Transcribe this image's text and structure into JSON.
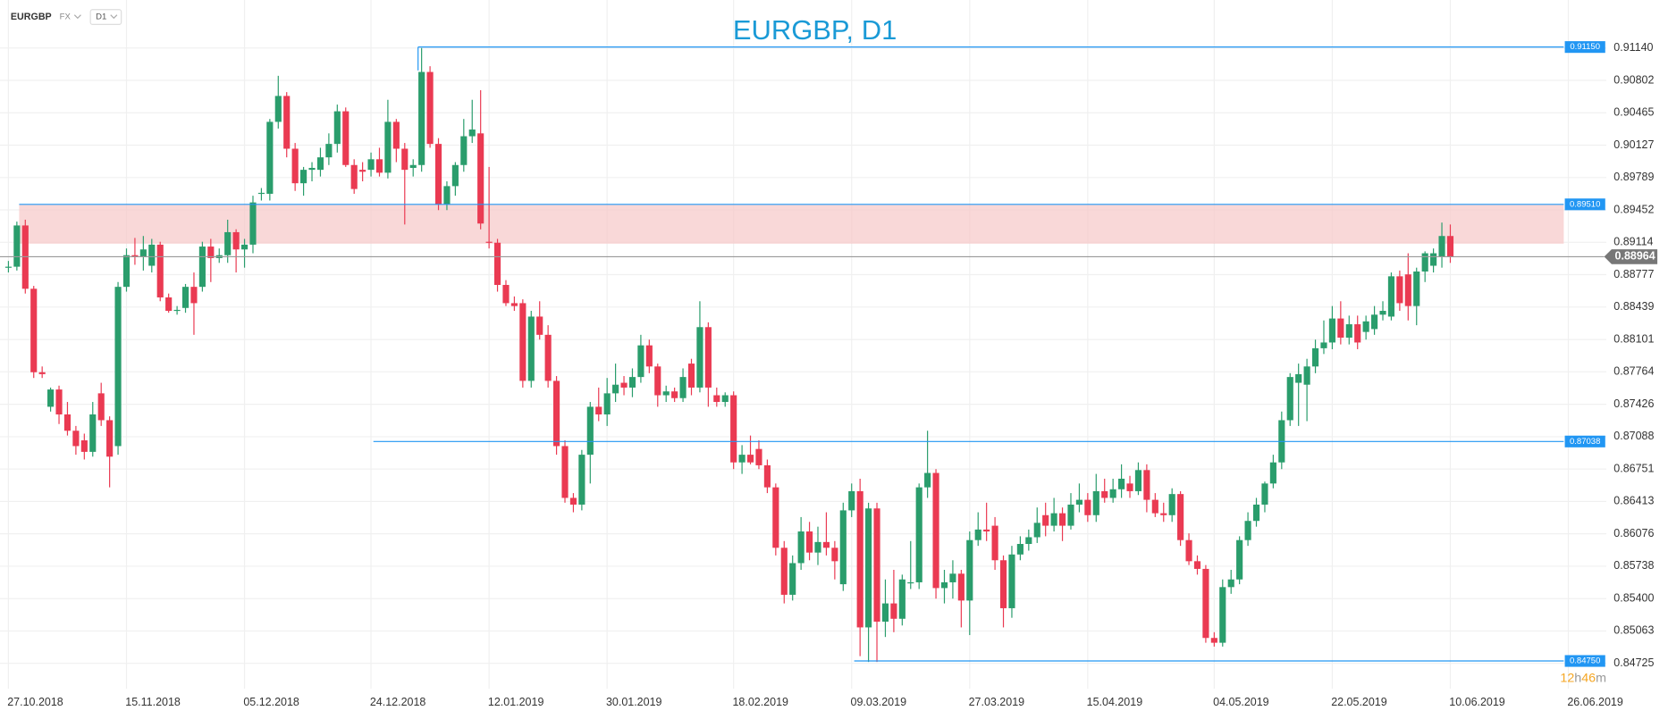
{
  "chart_data": {
    "type": "candlestick",
    "symbol": "EURGBP",
    "market": "FX",
    "timeframe": "D1",
    "title": "EURGBP, D1",
    "up_color": "#2a9d6c",
    "down_color": "#ea3a52",
    "level_color": "#2196f3",
    "zone_color": "#f7c7c7",
    "grid": true,
    "xlim": [
      -1,
      189.5
    ],
    "ylim": [
      0.8446,
      0.9164
    ],
    "yticks": [
      {
        "value": 0.9114,
        "label": "0.91140"
      },
      0.90802,
      0.90465,
      0.90127,
      0.89789,
      0.89452,
      0.89114,
      0.88777,
      0.88439,
      0.88101,
      0.87764,
      0.87426,
      0.87088,
      0.86751,
      0.86413,
      0.86076,
      0.85738,
      {
        "value": 0.854,
        "label": "0.85400"
      },
      0.85063,
      0.84725
    ],
    "xticks": [
      {
        "value": 0,
        "label": "27.10.2018"
      },
      {
        "value": 14,
        "label": "15.11.2018"
      },
      {
        "value": 28,
        "label": "05.12.2018"
      },
      {
        "value": 43,
        "label": "24.12.2018"
      },
      {
        "value": 57,
        "label": "12.01.2019"
      },
      {
        "value": 71,
        "label": "30.01.2019"
      },
      {
        "value": 86,
        "label": "18.02.2019"
      },
      {
        "value": 100,
        "label": "09.03.2019"
      },
      {
        "value": 114,
        "label": "27.03.2019"
      },
      {
        "value": 128,
        "label": "15.04.2019"
      },
      {
        "value": 143,
        "label": "04.05.2019"
      },
      {
        "value": 157,
        "label": "22.05.2019"
      },
      {
        "value": 171,
        "label": "10.06.2019"
      },
      {
        "value": 185,
        "label": "26.06.2019"
      }
    ],
    "levels": [
      {
        "value": 0.9115,
        "label": "0.91150"
      },
      {
        "value": 0.8951,
        "label": "0.89510"
      },
      {
        "value": 0.87038,
        "label": "0.87038"
      },
      {
        "value": 0.8475,
        "label": "0.84750"
      }
    ],
    "zone": [
      0.891,
      0.8951
    ],
    "last_price": 0.88964,
    "countdown": [
      "12",
      "h",
      "46",
      "m"
    ],
    "candles": [
      [
        0.8885,
        0.8892,
        0.888,
        0.8886
      ],
      [
        0.8886,
        0.8933,
        0.8882,
        0.8929
      ],
      [
        0.8929,
        0.8935,
        0.8858,
        0.8863
      ],
      [
        0.8863,
        0.8866,
        0.877,
        0.8776
      ],
      [
        0.8776,
        0.8782,
        0.877,
        0.8774
      ],
      [
        0.874,
        0.876,
        0.8735,
        0.8758
      ],
      [
        0.8758,
        0.8762,
        0.8722,
        0.8732
      ],
      [
        0.8732,
        0.8745,
        0.871,
        0.8715
      ],
      [
        0.8715,
        0.872,
        0.869,
        0.8699
      ],
      [
        0.8705,
        0.8712,
        0.8685,
        0.8693
      ],
      [
        0.8693,
        0.8745,
        0.8688,
        0.8732
      ],
      [
        0.8754,
        0.8765,
        0.872,
        0.8726
      ],
      [
        0.8726,
        0.873,
        0.8656,
        0.8688
      ],
      [
        0.8699,
        0.887,
        0.869,
        0.8865
      ],
      [
        0.8865,
        0.8905,
        0.886,
        0.8898
      ],
      [
        0.8898,
        0.8916,
        0.8888,
        0.8896
      ],
      [
        0.8896,
        0.8918,
        0.8882,
        0.8904
      ],
      [
        0.8887,
        0.8915,
        0.888,
        0.8909
      ],
      [
        0.8909,
        0.8912,
        0.885,
        0.8854
      ],
      [
        0.8854,
        0.8858,
        0.8838,
        0.884
      ],
      [
        0.884,
        0.8845,
        0.8836,
        0.8841
      ],
      [
        0.8843,
        0.8868,
        0.8838,
        0.8865
      ],
      [
        0.8865,
        0.888,
        0.8815,
        0.8848
      ],
      [
        0.8865,
        0.8912,
        0.886,
        0.8907
      ],
      [
        0.8907,
        0.8915,
        0.887,
        0.8895
      ],
      [
        0.8895,
        0.8905,
        0.889,
        0.8898
      ],
      [
        0.8898,
        0.8935,
        0.889,
        0.8922
      ],
      [
        0.8922,
        0.8925,
        0.888,
        0.8904
      ],
      [
        0.8904,
        0.8915,
        0.8885,
        0.8909
      ],
      [
        0.8909,
        0.896,
        0.89,
        0.8953
      ],
      [
        0.8962,
        0.8968,
        0.8955,
        0.8963
      ],
      [
        0.8962,
        0.904,
        0.8955,
        0.9037
      ],
      [
        0.9037,
        0.9085,
        0.903,
        0.9064
      ],
      [
        0.9064,
        0.9068,
        0.9,
        0.9009
      ],
      [
        0.9009,
        0.9015,
        0.8965,
        0.8973
      ],
      [
        0.8973,
        0.899,
        0.896,
        0.8987
      ],
      [
        0.8987,
        0.8995,
        0.8975,
        0.8989
      ],
      [
        0.8987,
        0.901,
        0.898,
        0.9
      ],
      [
        0.9,
        0.9025,
        0.8992,
        0.9014
      ],
      [
        0.9014,
        0.9055,
        0.9005,
        0.9048
      ],
      [
        0.9048,
        0.9052,
        0.899,
        0.8992
      ],
      [
        0.8992,
        0.8998,
        0.8962,
        0.8967
      ],
      [
        0.8987,
        0.8995,
        0.8975,
        0.8985
      ],
      [
        0.8987,
        0.9005,
        0.898,
        0.8998
      ],
      [
        0.8998,
        0.901,
        0.898,
        0.8984
      ],
      [
        0.8984,
        0.906,
        0.8978,
        0.9037
      ],
      [
        0.9037,
        0.904,
        0.8995,
        0.9009
      ],
      [
        0.9009,
        0.9015,
        0.893,
        0.8987
      ],
      [
        0.8989,
        0.8998,
        0.898,
        0.8992
      ],
      [
        0.8992,
        0.9114,
        0.8985,
        0.9089
      ],
      [
        0.9089,
        0.9095,
        0.901,
        0.9014
      ],
      [
        0.9014,
        0.902,
        0.8945,
        0.8951
      ],
      [
        0.8951,
        0.8975,
        0.8945,
        0.897
      ],
      [
        0.897,
        0.8995,
        0.896,
        0.8992
      ],
      [
        0.8992,
        0.904,
        0.8985,
        0.9022
      ],
      [
        0.9022,
        0.906,
        0.9015,
        0.9029
      ],
      [
        0.9025,
        0.907,
        0.8925,
        0.8931
      ],
      [
        0.8912,
        0.899,
        0.8905,
        0.8911
      ],
      [
        0.8911,
        0.8915,
        0.886,
        0.8867
      ],
      [
        0.8867,
        0.8872,
        0.8845,
        0.8848
      ],
      [
        0.8848,
        0.8855,
        0.884,
        0.8845
      ],
      [
        0.8848,
        0.8852,
        0.876,
        0.8767
      ],
      [
        0.8767,
        0.884,
        0.876,
        0.8834
      ],
      [
        0.8834,
        0.885,
        0.881,
        0.8815
      ],
      [
        0.8815,
        0.8825,
        0.876,
        0.8767
      ],
      [
        0.8767,
        0.8772,
        0.869,
        0.8699
      ],
      [
        0.8699,
        0.8705,
        0.864,
        0.8645
      ],
      [
        0.8645,
        0.865,
        0.863,
        0.8638
      ],
      [
        0.8638,
        0.8695,
        0.8632,
        0.869
      ],
      [
        0.869,
        0.8745,
        0.866,
        0.874
      ],
      [
        0.874,
        0.876,
        0.8725,
        0.8732
      ],
      [
        0.8732,
        0.877,
        0.872,
        0.8754
      ],
      [
        0.8754,
        0.8785,
        0.8745,
        0.8763
      ],
      [
        0.8765,
        0.8772,
        0.8752,
        0.876
      ],
      [
        0.876,
        0.878,
        0.875,
        0.8771
      ],
      [
        0.8771,
        0.8815,
        0.8765,
        0.8804
      ],
      [
        0.8804,
        0.881,
        0.8775,
        0.8782
      ],
      [
        0.8782,
        0.8785,
        0.874,
        0.8752
      ],
      [
        0.8752,
        0.8762,
        0.8745,
        0.8756
      ],
      [
        0.8756,
        0.876,
        0.8745,
        0.8749
      ],
      [
        0.8749,
        0.878,
        0.8745,
        0.8771
      ],
      [
        0.8785,
        0.879,
        0.8752,
        0.876
      ],
      [
        0.876,
        0.885,
        0.8755,
        0.8823
      ],
      [
        0.8823,
        0.8828,
        0.874,
        0.876
      ],
      [
        0.8752,
        0.876,
        0.874,
        0.8745
      ],
      [
        0.8745,
        0.8755,
        0.874,
        0.8752
      ],
      [
        0.8752,
        0.8756,
        0.8675,
        0.8682
      ],
      [
        0.8682,
        0.87,
        0.867,
        0.869
      ],
      [
        0.869,
        0.871,
        0.868,
        0.8682
      ],
      [
        0.8696,
        0.8705,
        0.8675,
        0.8679
      ],
      [
        0.8679,
        0.8685,
        0.865,
        0.8656
      ],
      [
        0.8656,
        0.866,
        0.8585,
        0.8593
      ],
      [
        0.8593,
        0.86,
        0.8535,
        0.8544
      ],
      [
        0.8544,
        0.8585,
        0.8538,
        0.8577
      ],
      [
        0.8577,
        0.8625,
        0.857,
        0.861
      ],
      [
        0.861,
        0.862,
        0.858,
        0.8588
      ],
      [
        0.8588,
        0.8615,
        0.8575,
        0.8599
      ],
      [
        0.8599,
        0.863,
        0.8585,
        0.8593
      ],
      [
        0.8593,
        0.86,
        0.856,
        0.8579
      ],
      [
        0.8555,
        0.864,
        0.8548,
        0.8632
      ],
      [
        0.8632,
        0.866,
        0.8625,
        0.8652
      ],
      [
        0.8652,
        0.8665,
        0.848,
        0.851
      ],
      [
        0.851,
        0.864,
        0.8474,
        0.8634
      ],
      [
        0.8634,
        0.864,
        0.8474,
        0.8516
      ],
      [
        0.8516,
        0.856,
        0.85,
        0.8535
      ],
      [
        0.8535,
        0.857,
        0.8505,
        0.8519
      ],
      [
        0.8519,
        0.8565,
        0.8512,
        0.856
      ],
      [
        0.8557,
        0.86,
        0.855,
        0.8557
      ],
      [
        0.8557,
        0.866,
        0.855,
        0.8656
      ],
      [
        0.8656,
        0.8715,
        0.8645,
        0.8671
      ],
      [
        0.8671,
        0.8675,
        0.854,
        0.8551
      ],
      [
        0.8551,
        0.857,
        0.8535,
        0.8557
      ],
      [
        0.8557,
        0.858,
        0.854,
        0.8566
      ],
      [
        0.8566,
        0.857,
        0.851,
        0.8538
      ],
      [
        0.8538,
        0.861,
        0.8502,
        0.8601
      ],
      [
        0.8601,
        0.863,
        0.8595,
        0.8612
      ],
      [
        0.8612,
        0.864,
        0.86,
        0.861
      ],
      [
        0.8616,
        0.8625,
        0.857,
        0.858
      ],
      [
        0.858,
        0.8585,
        0.851,
        0.853
      ],
      [
        0.853,
        0.8595,
        0.852,
        0.8586
      ],
      [
        0.8586,
        0.8605,
        0.858,
        0.8597
      ],
      [
        0.8597,
        0.8612,
        0.859,
        0.8604
      ],
      [
        0.8604,
        0.8635,
        0.8598,
        0.8619
      ],
      [
        0.8627,
        0.864,
        0.8605,
        0.8616
      ],
      [
        0.8616,
        0.8645,
        0.861,
        0.8629
      ],
      [
        0.8629,
        0.8635,
        0.86,
        0.8616
      ],
      [
        0.8616,
        0.865,
        0.8612,
        0.8638
      ],
      [
        0.8638,
        0.866,
        0.863,
        0.8643
      ],
      [
        0.8643,
        0.865,
        0.862,
        0.8627
      ],
      [
        0.8627,
        0.867,
        0.862,
        0.8652
      ],
      [
        0.8652,
        0.8665,
        0.864,
        0.8645
      ],
      [
        0.8645,
        0.8665,
        0.864,
        0.8654
      ],
      [
        0.8654,
        0.868,
        0.8645,
        0.8665
      ],
      [
        0.866,
        0.8668,
        0.8645,
        0.8652
      ],
      [
        0.8652,
        0.8682,
        0.8648,
        0.8674
      ],
      [
        0.8674,
        0.868,
        0.863,
        0.8643
      ],
      [
        0.8643,
        0.865,
        0.8625,
        0.8629
      ],
      [
        0.8629,
        0.864,
        0.862,
        0.8627
      ],
      [
        0.8627,
        0.8655,
        0.862,
        0.8649
      ],
      [
        0.8649,
        0.8652,
        0.8595,
        0.8601
      ],
      [
        0.8601,
        0.8608,
        0.8575,
        0.8579
      ],
      [
        0.8579,
        0.8585,
        0.8565,
        0.8571
      ],
      [
        0.8571,
        0.8575,
        0.8494,
        0.8499
      ],
      [
        0.8499,
        0.8505,
        0.849,
        0.8494
      ],
      [
        0.8494,
        0.856,
        0.849,
        0.8552
      ],
      [
        0.8552,
        0.857,
        0.8545,
        0.856
      ],
      [
        0.856,
        0.8605,
        0.8555,
        0.8601
      ],
      [
        0.8601,
        0.863,
        0.8595,
        0.8621
      ],
      [
        0.8621,
        0.8645,
        0.8615,
        0.8638
      ],
      [
        0.8638,
        0.8662,
        0.863,
        0.866
      ],
      [
        0.866,
        0.869,
        0.8655,
        0.8682
      ],
      [
        0.8682,
        0.8735,
        0.8675,
        0.8726
      ],
      [
        0.8726,
        0.8775,
        0.872,
        0.8771
      ],
      [
        0.8765,
        0.8785,
        0.872,
        0.8774
      ],
      [
        0.8763,
        0.879,
        0.8725,
        0.8782
      ],
      [
        0.8782,
        0.881,
        0.8775,
        0.8801
      ],
      [
        0.8801,
        0.883,
        0.8795,
        0.8807
      ],
      [
        0.8807,
        0.8845,
        0.88,
        0.8832
      ],
      [
        0.8832,
        0.885,
        0.8805,
        0.8812
      ],
      [
        0.8812,
        0.8835,
        0.8805,
        0.8826
      ],
      [
        0.8826,
        0.8835,
        0.88,
        0.8807
      ],
      [
        0.8818,
        0.8835,
        0.881,
        0.8829
      ],
      [
        0.8821,
        0.8845,
        0.8815,
        0.8836
      ],
      [
        0.8836,
        0.885,
        0.883,
        0.884
      ],
      [
        0.8834,
        0.888,
        0.883,
        0.8876
      ],
      [
        0.8876,
        0.8882,
        0.884,
        0.8848
      ],
      [
        0.8878,
        0.89,
        0.883,
        0.8845
      ],
      [
        0.8845,
        0.8885,
        0.8825,
        0.8881
      ],
      [
        0.8881,
        0.8902,
        0.887,
        0.89
      ],
      [
        0.8887,
        0.8905,
        0.888,
        0.89
      ],
      [
        0.8896,
        0.8932,
        0.8885,
        0.8918
      ],
      [
        0.8918,
        0.893,
        0.889,
        0.8896
      ]
    ]
  }
}
